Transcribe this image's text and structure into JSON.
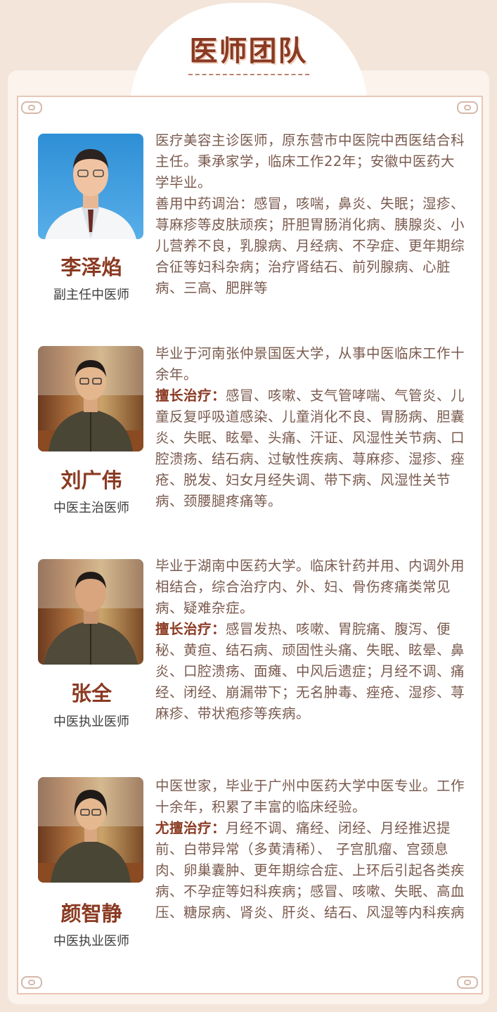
{
  "header": {
    "title": "医师团队"
  },
  "doctors": [
    {
      "name": "李泽焰",
      "role": "副主任中医师",
      "intro": "医疗美容主诊医师，原东营市中医院中西医结合科主任。秉承家学，临床工作22年；安徽中医药大学毕业。",
      "specialty_label": "",
      "specialty": "善用中药调治：感冒，咳喘，鼻炎、失眠；湿疹、荨麻疹等皮肤顽疾；肝胆胃肠消化病、胰腺炎、小儿营养不良，乳腺病、月经病、不孕症、更年期综合征等妇科杂病；治疗肾结石、前列腺病、心脏病、三高、肥胖等"
    },
    {
      "name": "刘广伟",
      "role": "中医主治医师",
      "intro": "毕业于河南张仲景国医大学，从事中医临床工作十余年。",
      "specialty_label": "擅长治疗：",
      "specialty": "感冒、咳嗽、支气管哮喘、气管炎、儿童反复呼吸道感染、儿童消化不良、胃肠病、胆囊炎、失眠、眩晕、头痛、汗证、风湿性关节病、口腔溃疡、结石病、过敏性疾病、荨麻疹、湿疹、痤疮、脱发、妇女月经失调、带下病、风湿性关节病、颈腰腿疼痛等。"
    },
    {
      "name": "张全",
      "role": "中医执业医师",
      "intro": "毕业于湖南中医药大学。临床针药并用、内调外用相结合，综合治疗内、外、妇、骨伤疼痛类常见病、疑难杂症。",
      "specialty_label": "擅长治疗：",
      "specialty": "感冒发热、咳嗽、胃脘痛、腹泻、便秘、黄疸、结石病、顽固性头痛、失眠、眩晕、鼻炎、口腔溃疡、面瘫、中风后遗症；月经不调、痛经、闭经、崩漏带下；无名肿毒、痤疮、湿疹、荨麻疹、带状疱疹等疾病。"
    },
    {
      "name": "颜智静",
      "role": "中医执业医师",
      "intro": "中医世家，毕业于广州中医药大学中医专业。工作十余年，积累了丰富的临床经验。",
      "specialty_label": "尤擅治疗：",
      "specialty": "月经不调、痛经、闭经、月经推迟提前、白带异常（多黄清稀）、 子宫肌瘤、宫颈息肉、卵巢囊肿、更年期综合症、上环后引起各类疾病、不孕症等妇科疾病；感冒、咳嗽、失眠、高血压、糖尿病、肾炎、肝炎、结石、风湿等内科疾病"
    }
  ]
}
